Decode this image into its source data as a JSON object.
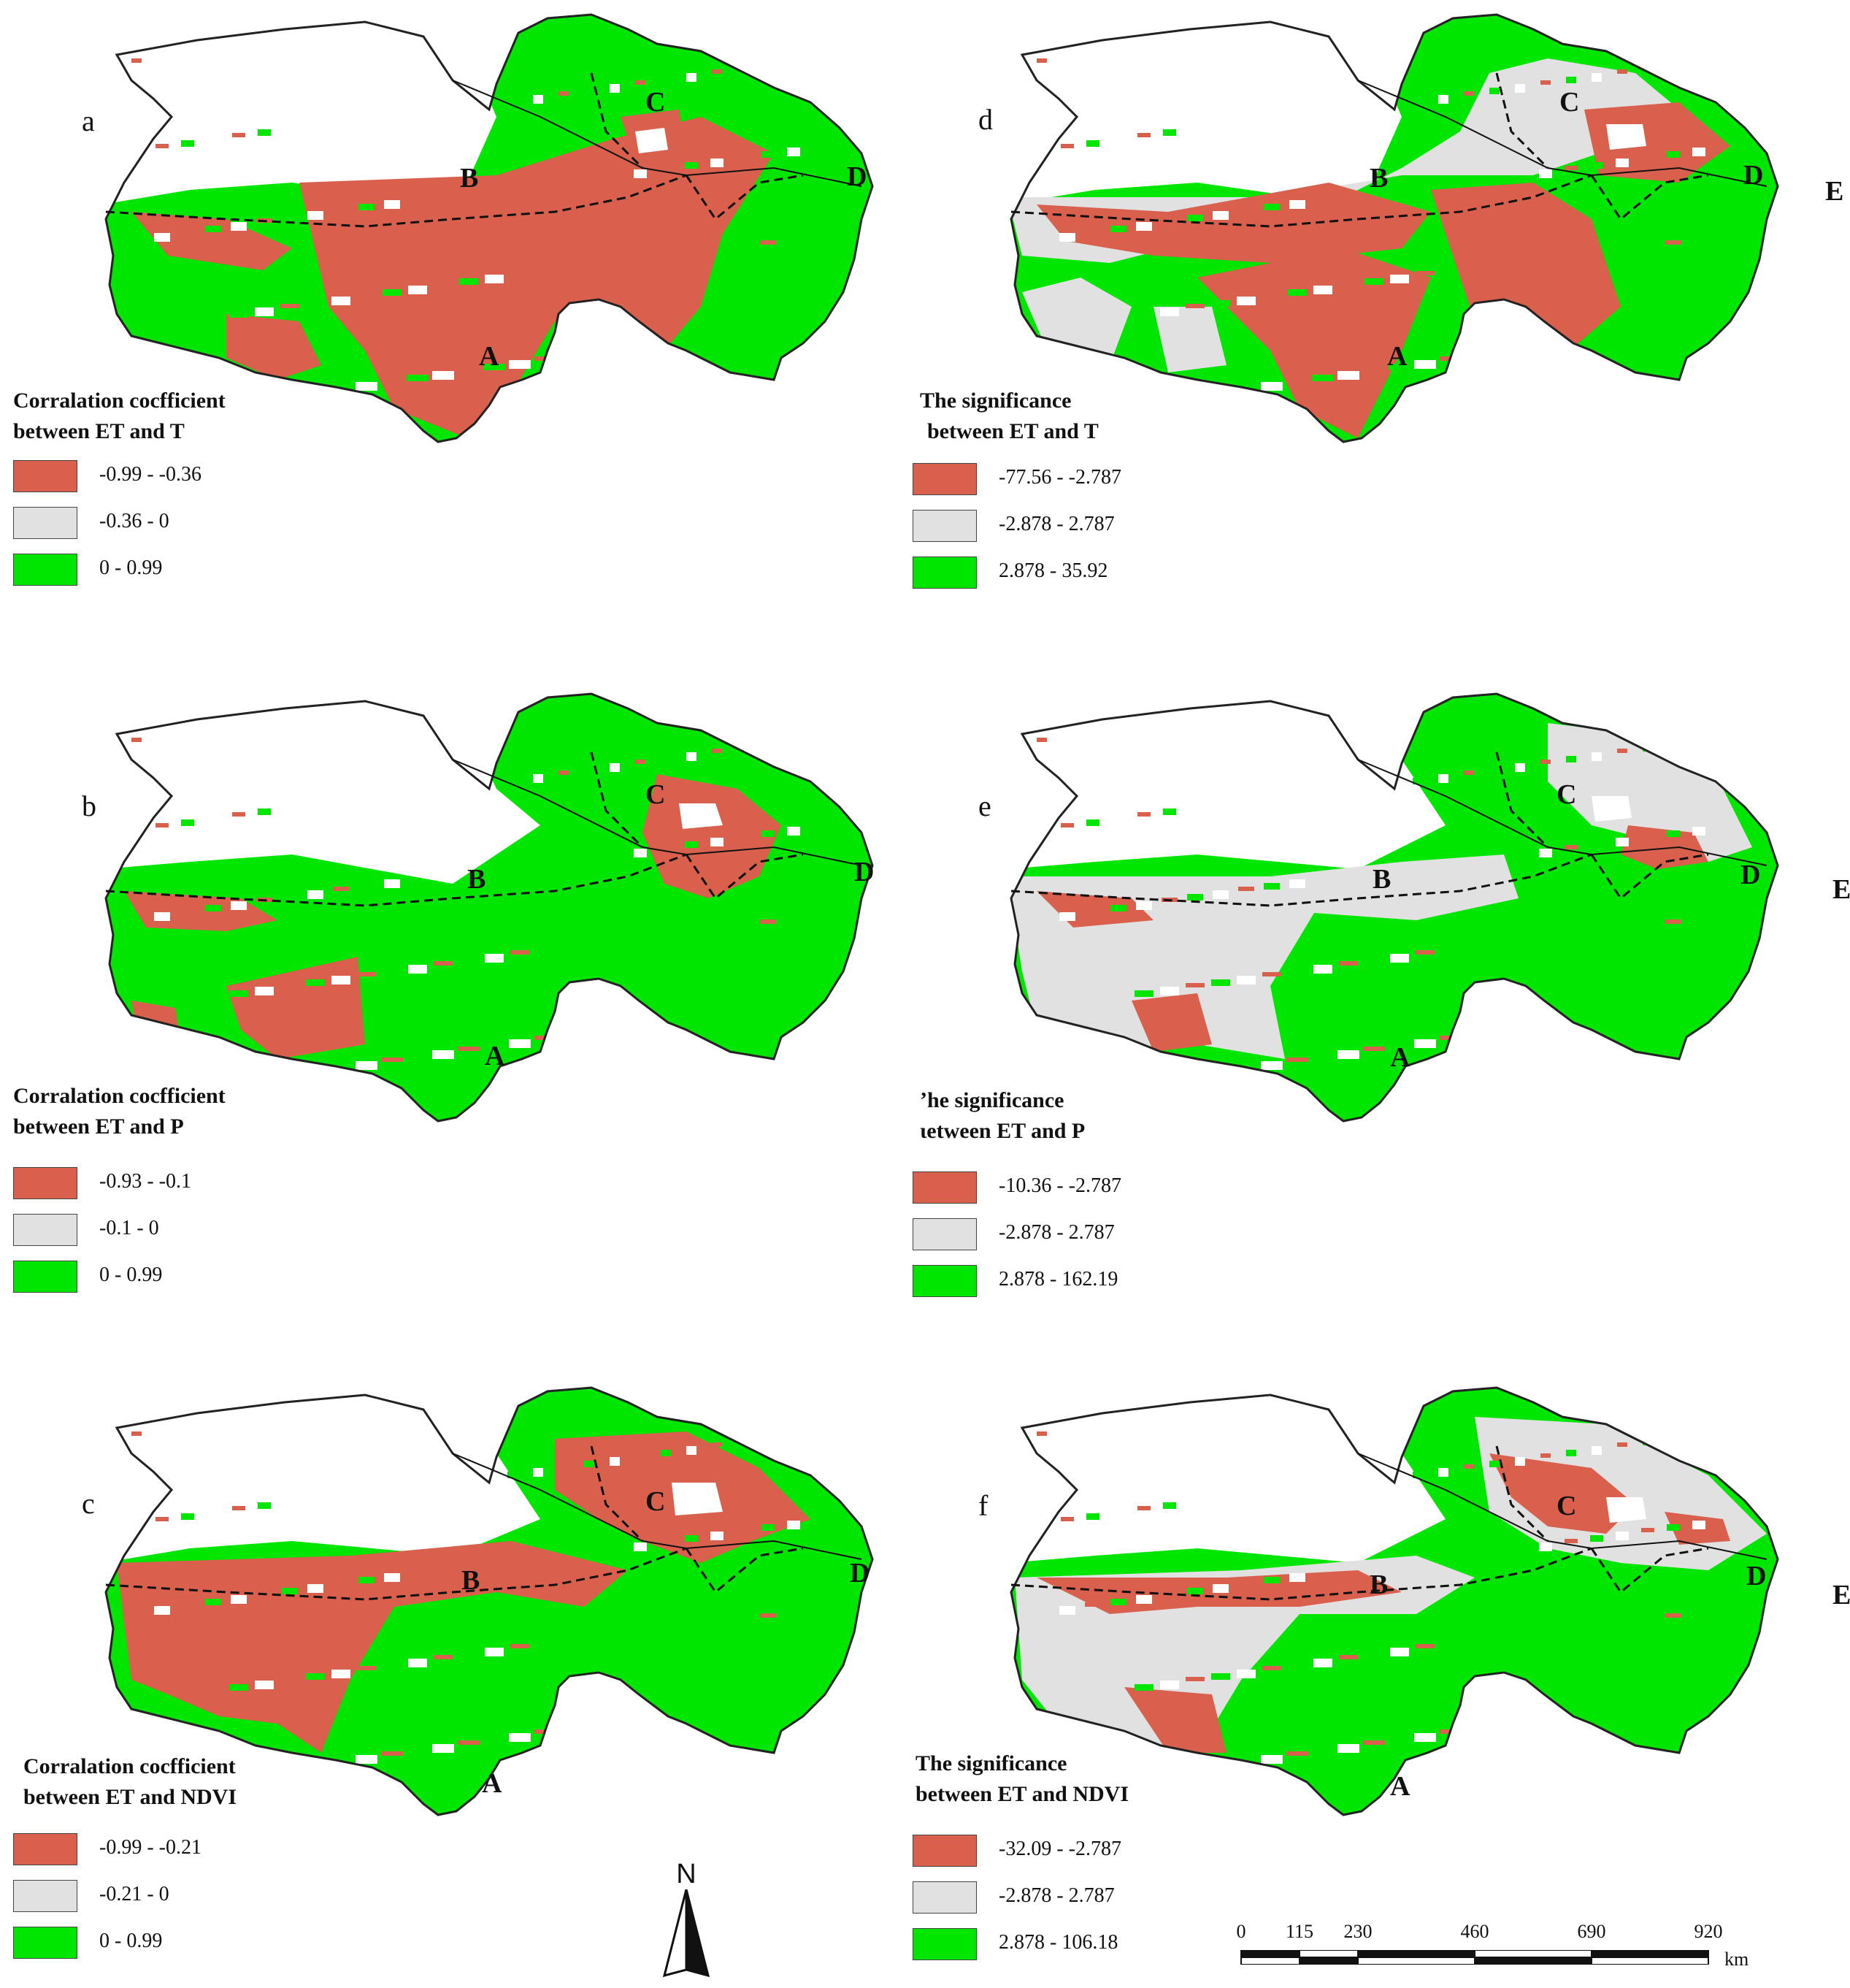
{
  "colors": {
    "negative": "#d9604c",
    "neutral": "#e1e1e1",
    "positive": "#00e600",
    "none": "#ffffff",
    "outline": "#222222"
  },
  "regions": [
    "A",
    "B",
    "C",
    "D",
    "E"
  ],
  "panels": [
    {
      "letter": "a",
      "title_line1": "Corralation cocfficient",
      "title_line2": "between ET and T",
      "legend": [
        {
          "label": "-0.99 - -0.36",
          "color": "#d9604c"
        },
        {
          "label": "-0.36 - 0",
          "color": "#e1e1e1"
        },
        {
          "label": "0 - 0.99",
          "color": "#00e600"
        }
      ]
    },
    {
      "letter": "b",
      "title_line1": "Corralation cocfficient",
      "title_line2": "between ET and P",
      "legend": [
        {
          "label": "-0.93 - -0.1",
          "color": "#d9604c"
        },
        {
          "label": "-0.1 - 0",
          "color": "#e1e1e1"
        },
        {
          "label": "0 - 0.99",
          "color": "#00e600"
        }
      ]
    },
    {
      "letter": "c",
      "title_line1": "Corralation cocfficient",
      "title_line2": "between ET and NDVI",
      "legend": [
        {
          "label": "-0.99 - -0.21",
          "color": "#d9604c"
        },
        {
          "label": "-0.21 - 0",
          "color": "#e1e1e1"
        },
        {
          "label": "0 - 0.99",
          "color": "#00e600"
        }
      ]
    },
    {
      "letter": "d",
      "title_line1": "The significance",
      "title_line2": "between ET and T",
      "legend": [
        {
          "label": "-77.56 - -2.787",
          "color": "#d9604c"
        },
        {
          "label": "-2.878 - 2.787",
          "color": "#e1e1e1"
        },
        {
          "label": "2.878 - 35.92",
          "color": "#00e600"
        }
      ]
    },
    {
      "letter": "e",
      "title_line1": "ʼhe significance",
      "title_line2": "ɩetween ET and P",
      "legend": [
        {
          "label": "-10.36 - -2.787",
          "color": "#d9604c"
        },
        {
          "label": "-2.878 - 2.787",
          "color": "#e1e1e1"
        },
        {
          "label": "2.878 - 162.19",
          "color": "#00e600"
        }
      ]
    },
    {
      "letter": "f",
      "title_line1": "The significance",
      "title_line2": "between ET and NDVI",
      "legend": [
        {
          "label": "-32.09 - -2.787",
          "color": "#d9604c"
        },
        {
          "label": "-2.878 - 2.787",
          "color": "#e1e1e1"
        },
        {
          "label": "2.878 - 106.18",
          "color": "#00e600"
        }
      ]
    }
  ],
  "north_arrow": {
    "label": "N"
  },
  "scale_bar": {
    "ticks": [
      "0",
      "115",
      "230",
      "460",
      "690",
      "920"
    ],
    "tick_values": [
      0,
      115,
      230,
      460,
      690,
      920
    ],
    "unit": "km"
  }
}
